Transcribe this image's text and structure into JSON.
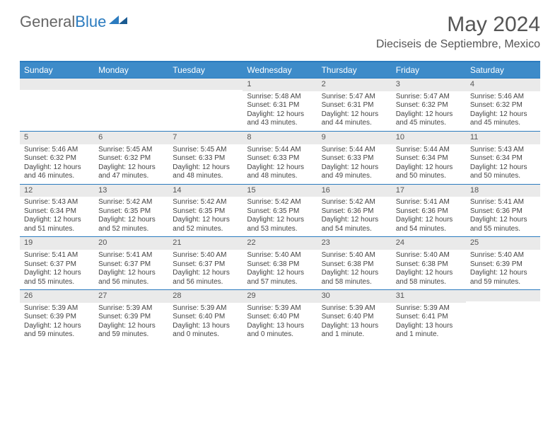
{
  "brand": {
    "part1": "General",
    "part2": "Blue"
  },
  "title": "May 2024",
  "location": "Dieciseis de Septiembre, Mexico",
  "colors": {
    "header_bar": "#3d8bc9",
    "rule": "#2b7bbf",
    "daynum_bg": "#eaeaea",
    "text": "#444444",
    "bg": "#ffffff"
  },
  "daysOfWeek": [
    "Sunday",
    "Monday",
    "Tuesday",
    "Wednesday",
    "Thursday",
    "Friday",
    "Saturday"
  ],
  "weeks": [
    [
      {
        "n": "",
        "sr": "",
        "ss": "",
        "dl": ""
      },
      {
        "n": "",
        "sr": "",
        "ss": "",
        "dl": ""
      },
      {
        "n": "",
        "sr": "",
        "ss": "",
        "dl": ""
      },
      {
        "n": "1",
        "sr": "Sunrise: 5:48 AM",
        "ss": "Sunset: 6:31 PM",
        "dl": "Daylight: 12 hours and 43 minutes."
      },
      {
        "n": "2",
        "sr": "Sunrise: 5:47 AM",
        "ss": "Sunset: 6:31 PM",
        "dl": "Daylight: 12 hours and 44 minutes."
      },
      {
        "n": "3",
        "sr": "Sunrise: 5:47 AM",
        "ss": "Sunset: 6:32 PM",
        "dl": "Daylight: 12 hours and 45 minutes."
      },
      {
        "n": "4",
        "sr": "Sunrise: 5:46 AM",
        "ss": "Sunset: 6:32 PM",
        "dl": "Daylight: 12 hours and 45 minutes."
      }
    ],
    [
      {
        "n": "5",
        "sr": "Sunrise: 5:46 AM",
        "ss": "Sunset: 6:32 PM",
        "dl": "Daylight: 12 hours and 46 minutes."
      },
      {
        "n": "6",
        "sr": "Sunrise: 5:45 AM",
        "ss": "Sunset: 6:32 PM",
        "dl": "Daylight: 12 hours and 47 minutes."
      },
      {
        "n": "7",
        "sr": "Sunrise: 5:45 AM",
        "ss": "Sunset: 6:33 PM",
        "dl": "Daylight: 12 hours and 48 minutes."
      },
      {
        "n": "8",
        "sr": "Sunrise: 5:44 AM",
        "ss": "Sunset: 6:33 PM",
        "dl": "Daylight: 12 hours and 48 minutes."
      },
      {
        "n": "9",
        "sr": "Sunrise: 5:44 AM",
        "ss": "Sunset: 6:33 PM",
        "dl": "Daylight: 12 hours and 49 minutes."
      },
      {
        "n": "10",
        "sr": "Sunrise: 5:44 AM",
        "ss": "Sunset: 6:34 PM",
        "dl": "Daylight: 12 hours and 50 minutes."
      },
      {
        "n": "11",
        "sr": "Sunrise: 5:43 AM",
        "ss": "Sunset: 6:34 PM",
        "dl": "Daylight: 12 hours and 50 minutes."
      }
    ],
    [
      {
        "n": "12",
        "sr": "Sunrise: 5:43 AM",
        "ss": "Sunset: 6:34 PM",
        "dl": "Daylight: 12 hours and 51 minutes."
      },
      {
        "n": "13",
        "sr": "Sunrise: 5:42 AM",
        "ss": "Sunset: 6:35 PM",
        "dl": "Daylight: 12 hours and 52 minutes."
      },
      {
        "n": "14",
        "sr": "Sunrise: 5:42 AM",
        "ss": "Sunset: 6:35 PM",
        "dl": "Daylight: 12 hours and 52 minutes."
      },
      {
        "n": "15",
        "sr": "Sunrise: 5:42 AM",
        "ss": "Sunset: 6:35 PM",
        "dl": "Daylight: 12 hours and 53 minutes."
      },
      {
        "n": "16",
        "sr": "Sunrise: 5:42 AM",
        "ss": "Sunset: 6:36 PM",
        "dl": "Daylight: 12 hours and 54 minutes."
      },
      {
        "n": "17",
        "sr": "Sunrise: 5:41 AM",
        "ss": "Sunset: 6:36 PM",
        "dl": "Daylight: 12 hours and 54 minutes."
      },
      {
        "n": "18",
        "sr": "Sunrise: 5:41 AM",
        "ss": "Sunset: 6:36 PM",
        "dl": "Daylight: 12 hours and 55 minutes."
      }
    ],
    [
      {
        "n": "19",
        "sr": "Sunrise: 5:41 AM",
        "ss": "Sunset: 6:37 PM",
        "dl": "Daylight: 12 hours and 55 minutes."
      },
      {
        "n": "20",
        "sr": "Sunrise: 5:41 AM",
        "ss": "Sunset: 6:37 PM",
        "dl": "Daylight: 12 hours and 56 minutes."
      },
      {
        "n": "21",
        "sr": "Sunrise: 5:40 AM",
        "ss": "Sunset: 6:37 PM",
        "dl": "Daylight: 12 hours and 56 minutes."
      },
      {
        "n": "22",
        "sr": "Sunrise: 5:40 AM",
        "ss": "Sunset: 6:38 PM",
        "dl": "Daylight: 12 hours and 57 minutes."
      },
      {
        "n": "23",
        "sr": "Sunrise: 5:40 AM",
        "ss": "Sunset: 6:38 PM",
        "dl": "Daylight: 12 hours and 58 minutes."
      },
      {
        "n": "24",
        "sr": "Sunrise: 5:40 AM",
        "ss": "Sunset: 6:38 PM",
        "dl": "Daylight: 12 hours and 58 minutes."
      },
      {
        "n": "25",
        "sr": "Sunrise: 5:40 AM",
        "ss": "Sunset: 6:39 PM",
        "dl": "Daylight: 12 hours and 59 minutes."
      }
    ],
    [
      {
        "n": "26",
        "sr": "Sunrise: 5:39 AM",
        "ss": "Sunset: 6:39 PM",
        "dl": "Daylight: 12 hours and 59 minutes."
      },
      {
        "n": "27",
        "sr": "Sunrise: 5:39 AM",
        "ss": "Sunset: 6:39 PM",
        "dl": "Daylight: 12 hours and 59 minutes."
      },
      {
        "n": "28",
        "sr": "Sunrise: 5:39 AM",
        "ss": "Sunset: 6:40 PM",
        "dl": "Daylight: 13 hours and 0 minutes."
      },
      {
        "n": "29",
        "sr": "Sunrise: 5:39 AM",
        "ss": "Sunset: 6:40 PM",
        "dl": "Daylight: 13 hours and 0 minutes."
      },
      {
        "n": "30",
        "sr": "Sunrise: 5:39 AM",
        "ss": "Sunset: 6:40 PM",
        "dl": "Daylight: 13 hours and 1 minute."
      },
      {
        "n": "31",
        "sr": "Sunrise: 5:39 AM",
        "ss": "Sunset: 6:41 PM",
        "dl": "Daylight: 13 hours and 1 minute."
      },
      {
        "n": "",
        "sr": "",
        "ss": "",
        "dl": ""
      }
    ]
  ]
}
